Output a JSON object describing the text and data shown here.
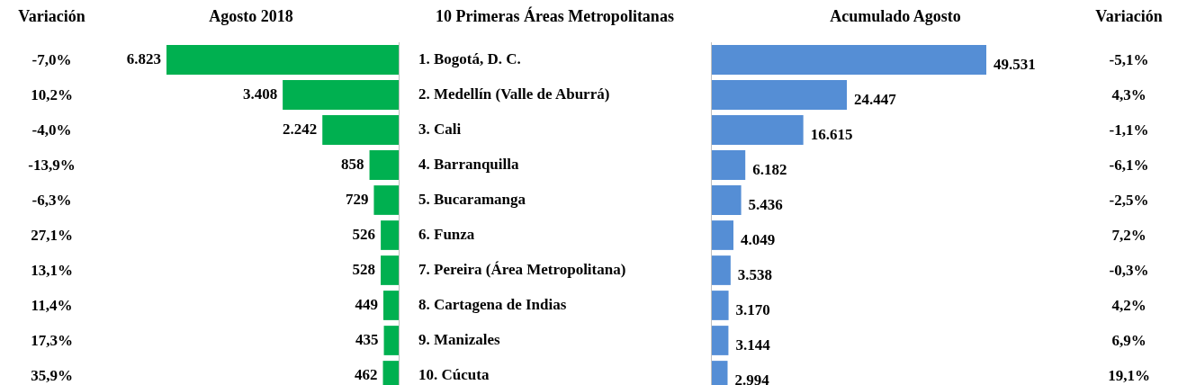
{
  "chart_data": [
    {
      "type": "other",
      "title": "Variación",
      "annotations": [
        "-7,0%",
        "10,2%",
        "-4,0%",
        "-13,9%",
        "-6,3%",
        "27,1%",
        "13,1%",
        "11,4%",
        "17,3%",
        "35,9%"
      ]
    },
    {
      "type": "bar",
      "orientation": "horizontal",
      "title": "Agosto 2018",
      "ylabel": "10 Primeras Áreas Metropolitanas",
      "categories": [
        "1. Bogotá, D. C.",
        "2. Medellín (Valle de Aburrá)",
        "3. Cali",
        "4. Barranquilla",
        "5. Bucaramanga",
        "6. Funza",
        "7. Pereira (Área Metropolitana)",
        "8. Cartagena de Indias",
        "9. Manizales",
        "10. Cúcuta"
      ],
      "values": [
        6823,
        3408,
        2242,
        858,
        729,
        526,
        528,
        449,
        435,
        462
      ],
      "value_labels": [
        "6.823",
        "3.408",
        "2.242",
        "858",
        "729",
        "526",
        "528",
        "449",
        "435",
        "462"
      ],
      "color": "#00b050",
      "xlim": [
        6823,
        0
      ],
      "tick_labels": "y",
      "legend": false
    },
    {
      "type": "bar",
      "orientation": "horizontal",
      "title": "Acumulado Agosto",
      "categories": [
        null,
        null,
        null,
        null,
        null,
        null,
        null,
        null,
        null,
        null
      ],
      "values": [
        49531,
        24447,
        16615,
        6182,
        5436,
        4049,
        3538,
        3170,
        3144,
        2994
      ],
      "value_labels": [
        "49.531",
        "24.447",
        "16.615",
        "6.182",
        "5.436",
        "4.049",
        "3.538",
        "3.170",
        "3.144",
        "2.994"
      ],
      "color": "#558ed5",
      "xlim": [
        0,
        49531
      ],
      "tick_labels": false,
      "legend": false
    },
    {
      "type": "other",
      "title": "Variación",
      "annotations": [
        "-5,1%",
        "4,3%",
        "-1,1%",
        "-6,1%",
        "-2,5%",
        "7,2%",
        "-0,3%",
        "4,2%",
        "6,9%",
        "19,1%"
      ]
    }
  ]
}
